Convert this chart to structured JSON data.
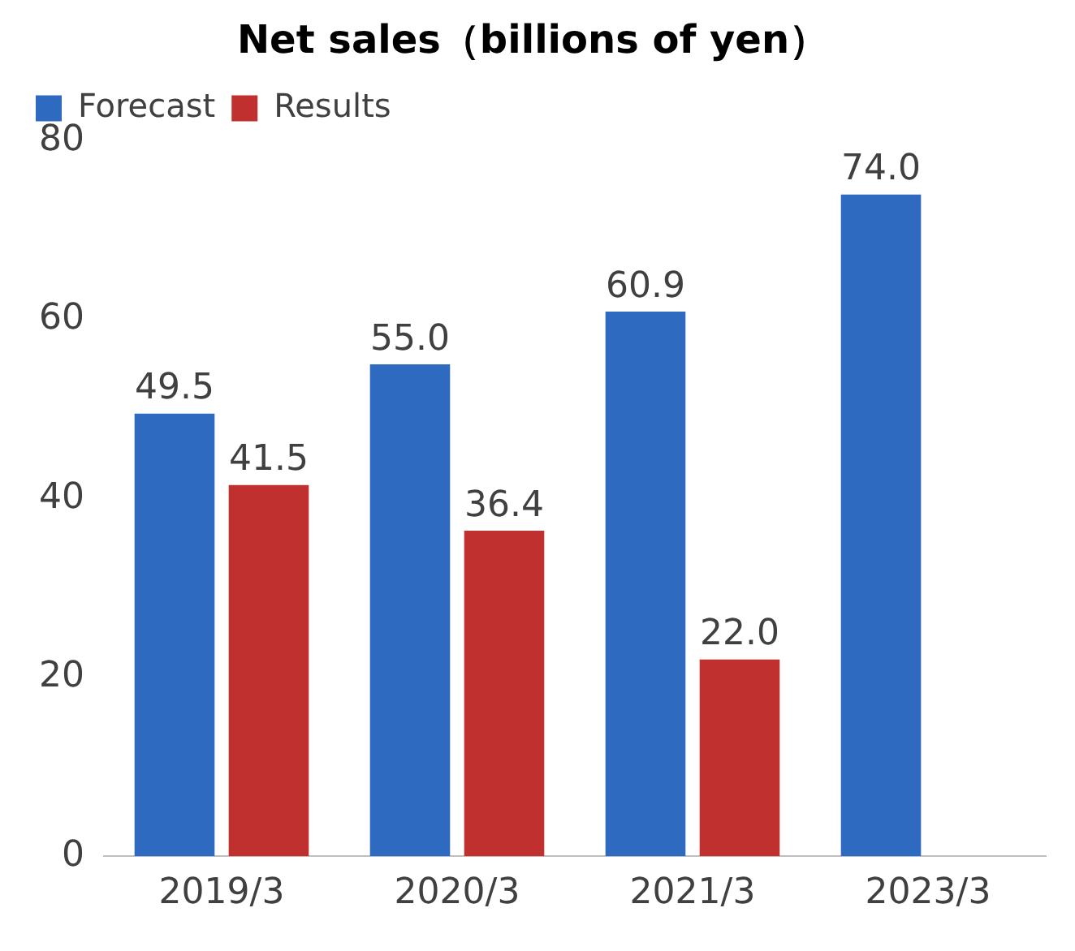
{
  "chart_data": {
    "type": "bar",
    "title": "Net sales（billions of yen）",
    "categories": [
      "2019/3",
      "2020/3",
      "2021/3",
      "2023/3"
    ],
    "series": [
      {
        "name": "Forecast",
        "color": "#2e6bc0",
        "values": [
          49.5,
          55.0,
          60.9,
          74.0
        ],
        "value_labels": [
          "49.5",
          "55.0",
          "60.9",
          "74.0"
        ]
      },
      {
        "name": "Results",
        "color": "#c0302f",
        "values": [
          41.5,
          36.4,
          22.0,
          null
        ],
        "value_labels": [
          "41.5",
          "36.4",
          "22.0",
          null
        ]
      }
    ],
    "ylim": [
      0,
      80
    ],
    "yticks": [
      0,
      20,
      40,
      60,
      80
    ],
    "grid": false,
    "legend": "top left"
  }
}
